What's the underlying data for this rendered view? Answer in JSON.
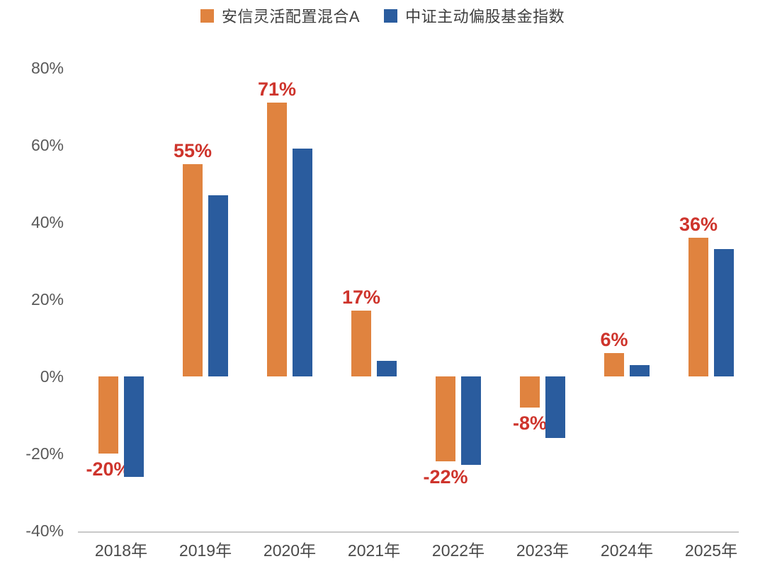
{
  "legend": {
    "items": [
      {
        "label": "安信灵活配置混合A",
        "color": "#E0833F"
      },
      {
        "label": "中证主动偏股基金指数",
        "color": "#2A5C9E"
      }
    ]
  },
  "chart_data": {
    "type": "bar",
    "title": "",
    "xlabel": "",
    "ylabel": "",
    "categories": [
      "2018年",
      "2019年",
      "2020年",
      "2021年",
      "2022年",
      "2023年",
      "2024年",
      "2025年"
    ],
    "series": [
      {
        "name": "安信灵活配置混合A",
        "color": "#E0833F",
        "values": [
          -20,
          55,
          71,
          17,
          -22,
          -8,
          6,
          36
        ],
        "labels": [
          "-20%",
          "55%",
          "71%",
          "17%",
          "-22%",
          "-8%",
          "6%",
          "36%"
        ]
      },
      {
        "name": "中证主动偏股基金指数",
        "color": "#2A5C9E",
        "values": [
          -26,
          47,
          59,
          4,
          -23,
          -16,
          3,
          33
        ],
        "labels": []
      }
    ],
    "yticks": [
      {
        "label": "80%",
        "value": 80
      },
      {
        "label": "60%",
        "value": 60
      },
      {
        "label": "40%",
        "value": 40
      },
      {
        "label": "20%",
        "value": 20
      },
      {
        "label": "0%",
        "value": 0
      },
      {
        "label": "-20%",
        "value": -20
      },
      {
        "label": "-40%",
        "value": -40
      }
    ],
    "ylim": [
      -40,
      80
    ],
    "grid": false,
    "legend_position": "top",
    "data_label_color": "#CE342C",
    "axis_line_color": "#C9C9C9",
    "tick_text_color": "#595959"
  }
}
